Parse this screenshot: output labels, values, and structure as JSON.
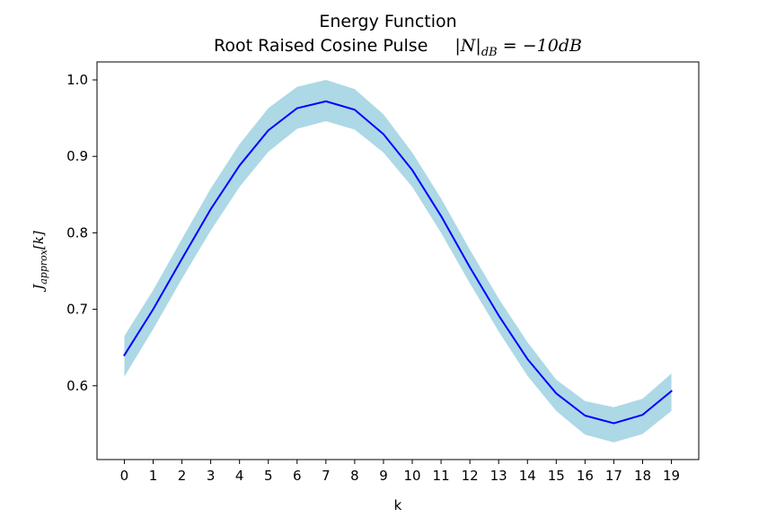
{
  "chart_data": {
    "type": "line",
    "title": "Energy Function",
    "subtitle_text": "Root Raised Cosine Pulse",
    "subtitle_math_prefix": "|N|",
    "subtitle_math_sub": "dB",
    "subtitle_math_suffix": " = −10dB",
    "xlabel": "k",
    "ylabel_main": "J",
    "ylabel_sub": "approx",
    "ylabel_suffix": "[k]",
    "x": [
      0,
      1,
      2,
      3,
      4,
      5,
      6,
      7,
      8,
      9,
      10,
      11,
      12,
      13,
      14,
      15,
      16,
      17,
      18,
      19
    ],
    "series": [
      {
        "values": [
          0.64,
          0.7,
          0.766,
          0.831,
          0.888,
          0.934,
          0.963,
          0.972,
          0.961,
          0.929,
          0.882,
          0.822,
          0.755,
          0.692,
          0.635,
          0.59,
          0.561,
          0.551,
          0.562,
          0.593
        ],
        "color": "#0000ff"
      }
    ],
    "band": {
      "upper": [
        0.665,
        0.725,
        0.792,
        0.858,
        0.916,
        0.963,
        0.991,
        1.0,
        0.988,
        0.955,
        0.905,
        0.845,
        0.778,
        0.714,
        0.657,
        0.608,
        0.58,
        0.572,
        0.583,
        0.616
      ],
      "lower": [
        0.612,
        0.674,
        0.74,
        0.803,
        0.86,
        0.906,
        0.936,
        0.946,
        0.935,
        0.905,
        0.86,
        0.8,
        0.734,
        0.671,
        0.613,
        0.567,
        0.536,
        0.526,
        0.537,
        0.567
      ],
      "color": "#add8e6"
    },
    "xlim": [
      -0.95,
      19.95
    ],
    "ylim": [
      0.5035,
      1.0235
    ],
    "xticks": [
      0,
      1,
      2,
      3,
      4,
      5,
      6,
      7,
      8,
      9,
      10,
      11,
      12,
      13,
      14,
      15,
      16,
      17,
      18,
      19
    ],
    "yticks": [
      0.6,
      0.7,
      0.8,
      0.9,
      1.0
    ],
    "ytick_labels": [
      "0.6",
      "0.7",
      "0.8",
      "0.9",
      "1.0"
    ],
    "grid": false
  }
}
